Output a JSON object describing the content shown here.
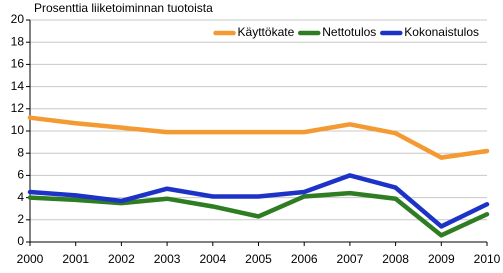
{
  "chart_data": {
    "type": "line",
    "title": "Prosenttia liiketoiminnan tuotoista",
    "x": [
      2000,
      2001,
      2002,
      2003,
      2004,
      2005,
      2006,
      2007,
      2008,
      2009,
      2010
    ],
    "xlim": [
      2000,
      2010
    ],
    "xticks": [
      2000,
      2001,
      2002,
      2003,
      2004,
      2005,
      2006,
      2007,
      2008,
      2009,
      2010
    ],
    "ylim": [
      0,
      20
    ],
    "yticks": [
      0,
      2,
      4,
      6,
      8,
      10,
      12,
      14,
      16,
      18,
      20
    ],
    "grid": true,
    "legend": "top-right",
    "series": [
      {
        "name": "Käyttökate",
        "color": "#f39b32",
        "values": [
          11.2,
          10.7,
          10.3,
          9.9,
          9.9,
          9.9,
          9.9,
          10.6,
          9.8,
          7.6,
          8.2
        ]
      },
      {
        "name": "Nettotulos",
        "color": "#2e7d22",
        "values": [
          4.0,
          3.8,
          3.5,
          3.9,
          3.2,
          2.3,
          4.1,
          4.4,
          3.9,
          0.6,
          2.5
        ]
      },
      {
        "name": "Kokonaistulos",
        "color": "#1d33c8",
        "values": [
          4.5,
          4.2,
          3.7,
          4.8,
          4.1,
          4.1,
          4.5,
          6.0,
          4.9,
          1.4,
          3.4
        ]
      }
    ]
  }
}
